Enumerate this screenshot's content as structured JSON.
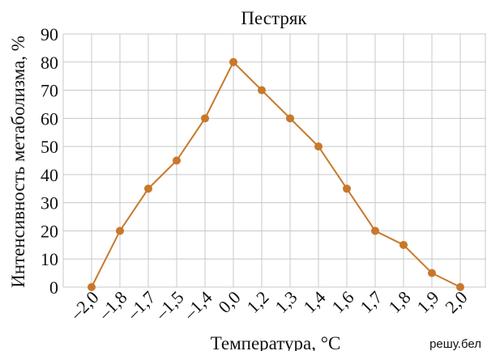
{
  "chart_data": {
    "type": "line",
    "title": "Пестряк",
    "x_label": "Температура, °C",
    "y_label": "Интенсивность метаболизма, %",
    "watermark": "решу.бел",
    "categories": [
      "–2,0",
      "–1,8",
      "–1,7",
      "–1,5",
      "–1,4",
      "0,0",
      "1,2",
      "1,3",
      "1,4",
      "1,6",
      "1,7",
      "1,8",
      "1,9",
      "2,0"
    ],
    "series": [
      {
        "name": "Пестряк",
        "color": "#c8782a",
        "values": [
          0,
          20,
          35,
          45,
          60,
          80,
          70,
          60,
          50,
          35,
          20,
          15,
          5,
          0
        ]
      }
    ],
    "ylim": [
      0,
      90
    ],
    "yticks": [
      0,
      10,
      20,
      30,
      40,
      50,
      60,
      70,
      80,
      90
    ],
    "grid": true
  }
}
